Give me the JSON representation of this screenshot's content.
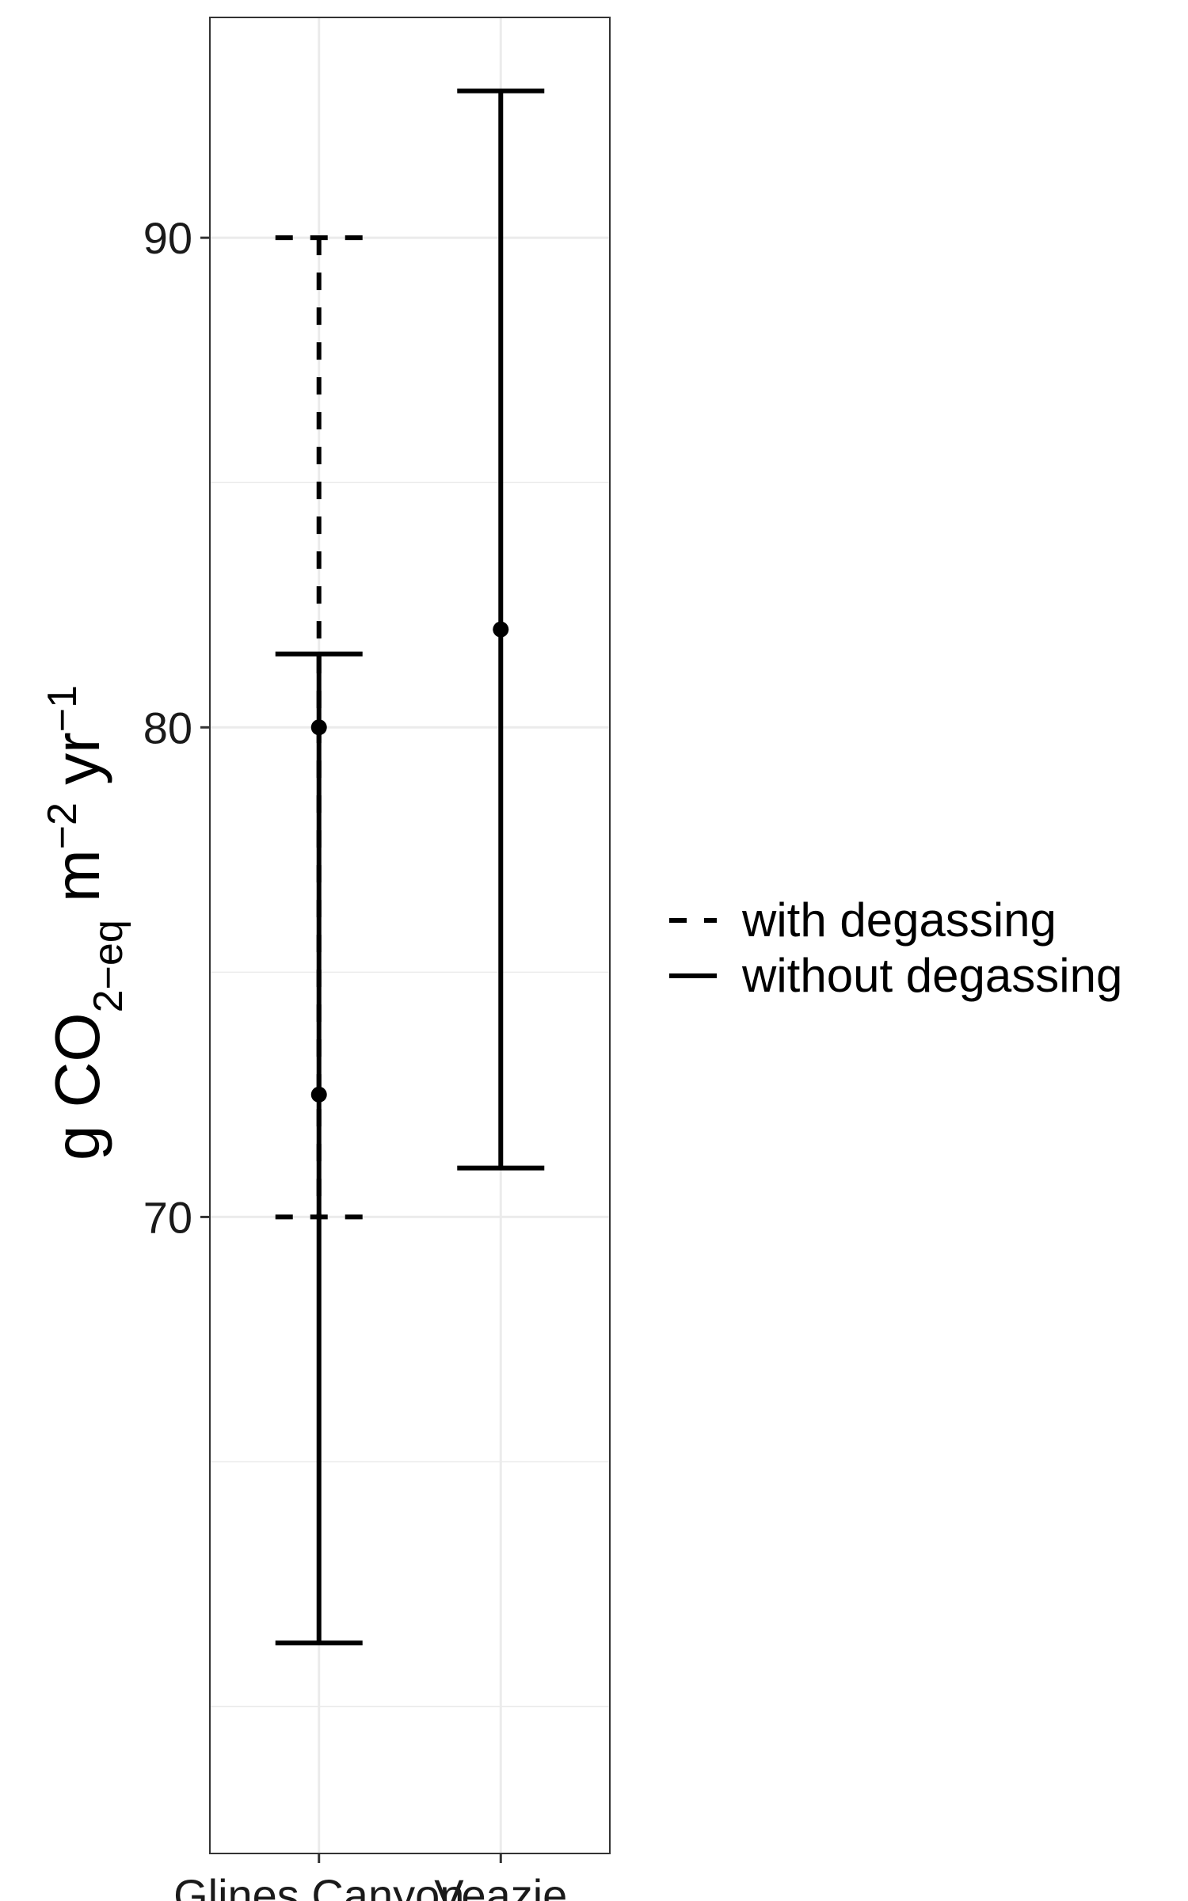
{
  "chart_data": {
    "type": "errorbar",
    "categories": [
      "Glines Canyon",
      "Veazie"
    ],
    "ylabel": {
      "base": "g CO",
      "sub": "2−eq",
      "unit1": " m",
      "sup1": "−2",
      "unit2": " yr",
      "sup2": "−1"
    },
    "ylim": [
      57,
      94.5
    ],
    "yticks": [
      70,
      80,
      90
    ],
    "grid": true,
    "legend_position": "right",
    "colors": {
      "line": "#000000",
      "grid": "#ebebeb",
      "panel_border": "#333333"
    },
    "series": [
      {
        "name": "with degassing",
        "linetype": "dashed",
        "points": [
          {
            "category": "Glines Canyon",
            "mean": 80.0,
            "low": 70.0,
            "high": 90.0
          }
        ]
      },
      {
        "name": "without degassing",
        "linetype": "solid",
        "points": [
          {
            "category": "Glines Canyon",
            "mean": 72.5,
            "low": 61.3,
            "high": 81.5
          },
          {
            "category": "Veazie",
            "mean": 82.0,
            "low": 71.0,
            "high": 93.0
          }
        ]
      }
    ]
  }
}
